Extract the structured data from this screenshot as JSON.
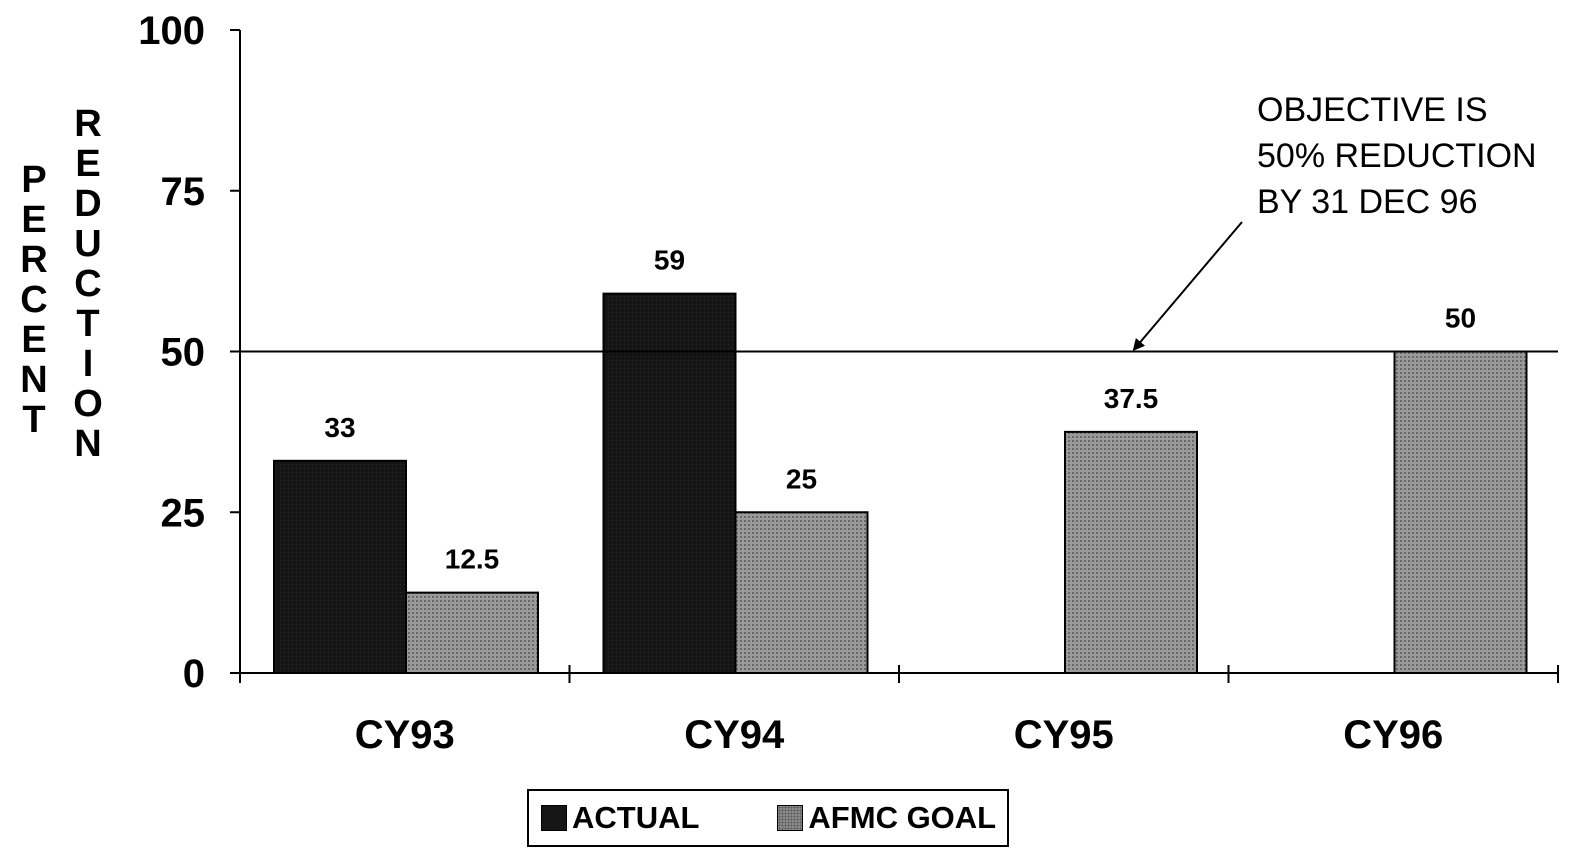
{
  "chart_data": {
    "type": "bar",
    "categories": [
      "CY93",
      "CY94",
      "CY95",
      "CY96"
    ],
    "series": [
      {
        "name": "ACTUAL",
        "values": [
          33,
          59,
          null,
          null
        ],
        "labels": [
          "33",
          "59",
          "",
          ""
        ],
        "color": "#161616"
      },
      {
        "name": "AFMC GOAL",
        "values": [
          12.5,
          25,
          37.5,
          50
        ],
        "labels": [
          "12.5",
          "25",
          "37.5",
          "50"
        ],
        "color": "#8a8a8a"
      }
    ],
    "ylabel_left": "PERCENT",
    "ylabel_right": "REDUCTION",
    "ylim": [
      0,
      100
    ],
    "yticks": [
      0,
      25,
      50,
      75,
      100
    ],
    "reference_line": {
      "value": 50
    },
    "annotation": {
      "lines": [
        "OBJECTIVE IS",
        "50% REDUCTION",
        "BY 31 DEC 96"
      ]
    },
    "legend_position": "bottom-center",
    "grid": false
  }
}
